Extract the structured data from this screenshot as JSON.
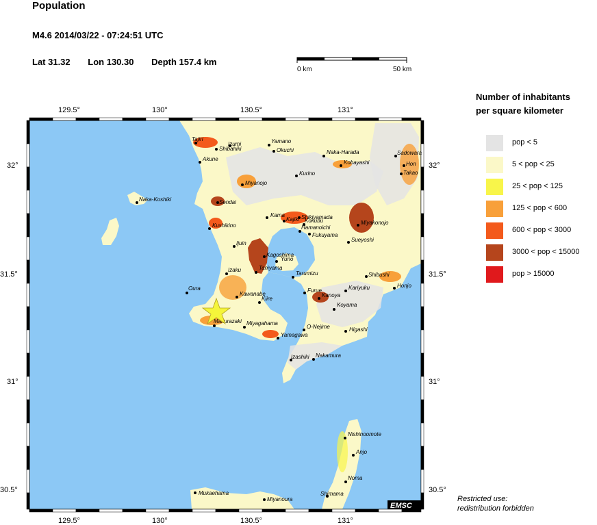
{
  "header": {
    "title": "Population",
    "event": "M4.6  2014/03/22 - 07:24:51 UTC",
    "lat": "Lat 31.32",
    "lon": "Lon 130.30",
    "depth": "Depth 157.4 km"
  },
  "scale": {
    "left_label": "0 km",
    "right_label": "50 km"
  },
  "legend": {
    "title_line1": "Number of inhabitants",
    "title_line2": "per square kilometer",
    "items": [
      {
        "label": "pop < 5",
        "color": "#e4e4e4"
      },
      {
        "label": "5 < pop < 25",
        "color": "#fbf8c8"
      },
      {
        "label": "25 < pop < 125",
        "color": "#f8f54a"
      },
      {
        "label": "125 < pop < 600",
        "color": "#f8a03a"
      },
      {
        "label": "600 < pop < 3000",
        "color": "#f35a1c"
      },
      {
        "label": "3000 < pop < 15000",
        "color": "#b5451c"
      },
      {
        "label": "pop > 15000",
        "color": "#e0191c"
      }
    ]
  },
  "axes": {
    "lon_ticks": [
      "129.5°",
      "130°",
      "130.5°",
      "131°"
    ],
    "lat_ticks": [
      "32°",
      "31.5°",
      "31°",
      "30.5°"
    ]
  },
  "cities": [
    {
      "name": "Tajiri"
    },
    {
      "name": "Izumi"
    },
    {
      "name": "Shibahiki"
    },
    {
      "name": "Yamano"
    },
    {
      "name": "Okuchi"
    },
    {
      "name": "Naka-Harada"
    },
    {
      "name": "Sadowara"
    },
    {
      "name": "Akune"
    },
    {
      "name": "Kobayashi"
    },
    {
      "name": "Hon"
    },
    {
      "name": "Takao"
    },
    {
      "name": "Kurino"
    },
    {
      "name": "Miyanojo"
    },
    {
      "name": "Naka-Koshiki"
    },
    {
      "name": "Sendai"
    },
    {
      "name": "Kama"
    },
    {
      "name": "Kajiki"
    },
    {
      "name": "Kokubu"
    },
    {
      "name": "Shikiyamada"
    },
    {
      "name": "Miyakonojo"
    },
    {
      "name": "Kushikino"
    },
    {
      "name": "Hamanoichi"
    },
    {
      "name": "Fukuyama"
    },
    {
      "name": "Sueyoshi"
    },
    {
      "name": "Ijuin"
    },
    {
      "name": "Kagoshima"
    },
    {
      "name": "Yuno"
    },
    {
      "name": "Izaku"
    },
    {
      "name": "Taniyama"
    },
    {
      "name": "Tarumizu"
    },
    {
      "name": "Shibushi"
    },
    {
      "name": "Honjo"
    },
    {
      "name": "Oura"
    },
    {
      "name": "Kawanabe"
    },
    {
      "name": "Kiire"
    },
    {
      "name": "Furue"
    },
    {
      "name": "Kanoya"
    },
    {
      "name": "Kariyuku"
    },
    {
      "name": "Koyama"
    },
    {
      "name": "Makurazaki"
    },
    {
      "name": "Miyagahama"
    },
    {
      "name": "O-Nejime"
    },
    {
      "name": "Higashi"
    },
    {
      "name": "Yamagawa"
    },
    {
      "name": "Izashiki"
    },
    {
      "name": "Nakamura"
    },
    {
      "name": "Nishinoomote"
    },
    {
      "name": "Anjo"
    },
    {
      "name": "Noma"
    },
    {
      "name": "Shimama"
    },
    {
      "name": "Mukaehama"
    },
    {
      "name": "Miyanoura"
    }
  ],
  "epicenter": {
    "lat": 31.32,
    "lon": 130.3,
    "color": "#f5f53a"
  },
  "colors": {
    "sea": "#8cc8f5",
    "land_base": "#fbf8c8",
    "land_sparse": "#e4e4e4"
  },
  "credit": "EMSC",
  "restricted": {
    "line1": "Restricted use:",
    "line2": "redistribution forbidden"
  }
}
